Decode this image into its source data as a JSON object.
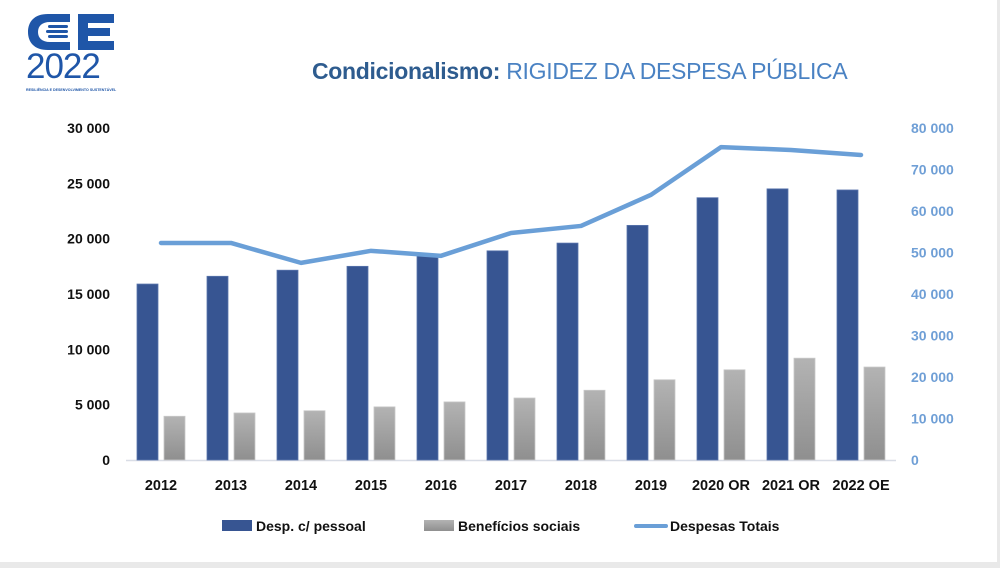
{
  "logo": {
    "mark": "OE",
    "year": "2022",
    "tagline": "Resiliência e desenvolvimento sustentável"
  },
  "title": {
    "prefix": "Condicionalismo:",
    "main": "RIGIDEZ DA DESPESA PÚBLICA"
  },
  "colors": {
    "title_dark": "#2e5c8f",
    "title_light": "#4a82c3",
    "bar_primary": "#375592",
    "bar_secondary": "#a6a6a6",
    "line": "#6a9fd7",
    "right_axis": "#6f9fd6"
  },
  "chart_data": {
    "type": "bar",
    "title": "Condicionalismo: RIGIDEZ DA DESPESA PÚBLICA",
    "categories": [
      "2012",
      "2013",
      "2014",
      "2015",
      "2016",
      "2017",
      "2018",
      "2019",
      "2020 OR",
      "2021 OR",
      "2022 OE"
    ],
    "series": [
      {
        "name": "Desp. c/ pessoal",
        "type": "bar",
        "axis": "left",
        "color": "#375592",
        "values": [
          15900,
          16600,
          17150,
          17500,
          18500,
          18900,
          19600,
          21200,
          23700,
          24500,
          24400
        ]
      },
      {
        "name": "Benefícios sociais",
        "type": "bar",
        "axis": "left",
        "color": "#a6a6a6",
        "values": [
          3950,
          4250,
          4450,
          4800,
          5250,
          5600,
          6300,
          7250,
          8150,
          9200,
          8400
        ]
      },
      {
        "name": "Despesas Totais",
        "type": "line",
        "axis": "right",
        "color": "#6a9fd7",
        "values": [
          52300,
          52300,
          47500,
          50400,
          49200,
          54700,
          56400,
          63900,
          75400,
          74700,
          73500
        ]
      }
    ],
    "y_left": {
      "range": [
        0,
        30000
      ],
      "ticks": [
        0,
        5000,
        10000,
        15000,
        20000,
        25000,
        30000
      ],
      "tick_labels": [
        "0",
        "5 000",
        "10 000",
        "15 000",
        "20 000",
        "25 000",
        "30 000"
      ]
    },
    "y_right": {
      "range": [
        0,
        80000
      ],
      "ticks": [
        0,
        10000,
        20000,
        30000,
        40000,
        50000,
        60000,
        70000,
        80000
      ],
      "tick_labels": [
        "0",
        "10 000",
        "20 000",
        "30 000",
        "40 000",
        "50 000",
        "60 000",
        "70 000",
        "80 000"
      ]
    },
    "xlabel": "",
    "ylabel": "",
    "grid": false,
    "legend_position": "bottom",
    "legend": [
      "Desp. c/ pessoal",
      "Benefícios sociais",
      "Despesas Totais"
    ]
  }
}
